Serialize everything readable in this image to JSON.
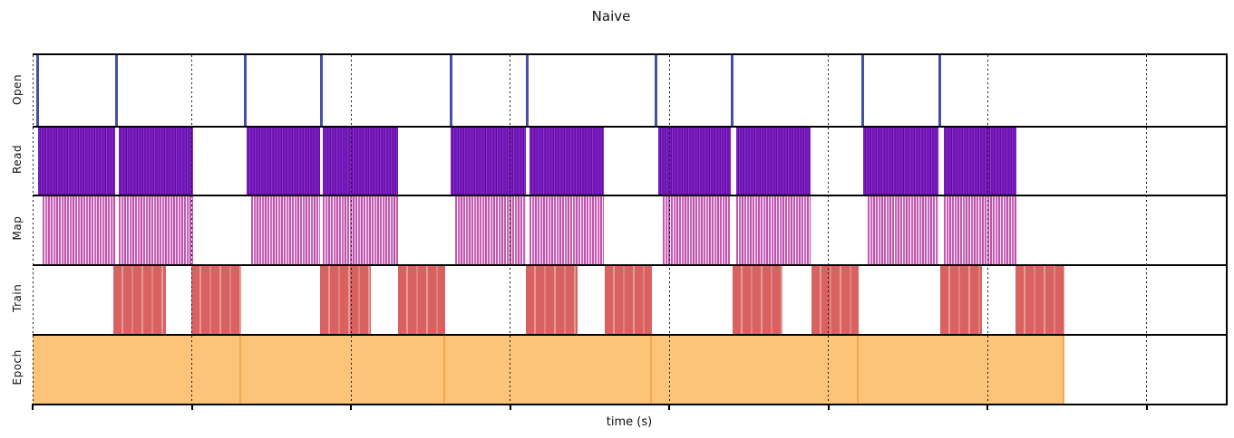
{
  "chart_data": {
    "type": "timeline",
    "subtype": "broken_barh_trace",
    "title": "Naive",
    "xlabel": "time (s)",
    "x_axis": {
      "units_note": "no numeric tick labels visible; positions expressed in gridline units (1 unit = spacing between dotted gridlines/ticks)",
      "range": [
        0,
        7.5
      ],
      "ticks": [
        0,
        1,
        2,
        3,
        4,
        5,
        6,
        7
      ],
      "tick_labels": [],
      "grid": "dotted vertical lines at each tick"
    },
    "legend": "none",
    "rows": [
      {
        "label": "Open",
        "key": "open",
        "color": "#4351a7",
        "intervals": [
          [
            0.022,
            0.039
          ],
          [
            0.518,
            0.535
          ],
          [
            1.327,
            1.344
          ],
          [
            1.806,
            1.823
          ],
          [
            2.621,
            2.638
          ],
          [
            3.102,
            3.119
          ],
          [
            3.908,
            3.925
          ],
          [
            4.39,
            4.407
          ],
          [
            5.21,
            5.227
          ],
          [
            5.695,
            5.712
          ]
        ]
      },
      {
        "label": "Read",
        "key": "read",
        "color": "#7a1bc2",
        "intervals": [
          [
            0.034,
            0.519
          ],
          [
            0.544,
            1.009
          ],
          [
            1.345,
            1.806
          ],
          [
            1.826,
            2.296
          ],
          [
            2.627,
            3.102
          ],
          [
            3.122,
            3.59
          ],
          [
            3.931,
            4.39
          ],
          [
            4.419,
            4.889
          ],
          [
            5.219,
            5.695
          ],
          [
            5.724,
            6.182
          ]
        ]
      },
      {
        "label": "Map",
        "key": "map",
        "color": "#c558b2",
        "intervals": [
          [
            0.063,
            0.519
          ],
          [
            0.544,
            1.009
          ],
          [
            1.373,
            1.806
          ],
          [
            1.826,
            2.296
          ],
          [
            2.655,
            3.102
          ],
          [
            3.122,
            3.59
          ],
          [
            3.96,
            4.39
          ],
          [
            4.419,
            4.889
          ],
          [
            5.248,
            5.695
          ],
          [
            5.724,
            6.182
          ]
        ]
      },
      {
        "label": "Train",
        "key": "train",
        "color": "#d96260",
        "intervals": [
          [
            0.507,
            0.838
          ],
          [
            0.997,
            1.311
          ],
          [
            1.806,
            2.125
          ],
          [
            2.296,
            2.593
          ],
          [
            3.1,
            3.425
          ],
          [
            3.595,
            3.89
          ],
          [
            4.399,
            4.712
          ],
          [
            4.895,
            5.191
          ],
          [
            5.704,
            5.966
          ],
          [
            6.177,
            6.484
          ]
        ]
      },
      {
        "label": "Epoch",
        "key": "epoch",
        "color": "#fbc478",
        "intervals": [
          [
            0.0,
            1.311
          ],
          [
            1.311,
            2.593
          ],
          [
            2.593,
            3.89
          ],
          [
            3.89,
            5.191
          ],
          [
            5.191,
            6.484
          ]
        ]
      }
    ]
  }
}
